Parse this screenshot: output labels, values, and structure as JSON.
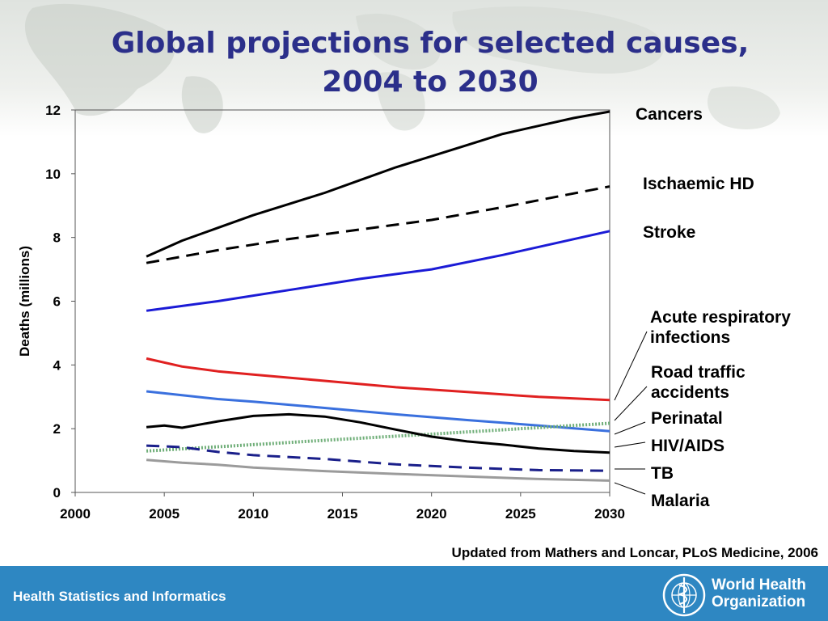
{
  "slide": {
    "title_line1": "Global projections for selected causes,",
    "title_line2": "2004 to 2030",
    "source": "Updated from Mathers and Loncar, PLoS Medicine, 2006",
    "footer_text": "Health Statistics and Informatics",
    "org_line1": "World Health",
    "org_line2": "Organization"
  },
  "chart_data": {
    "type": "line",
    "ylabel": "Deaths (millions)",
    "xlim": [
      2000,
      2030
    ],
    "ylim": [
      0,
      12
    ],
    "x_ticks": [
      2000,
      2005,
      2010,
      2015,
      2020,
      2025,
      2030
    ],
    "y_ticks": [
      0,
      2,
      4,
      6,
      8,
      10,
      12
    ],
    "grid": false,
    "legend": "labels at right end of lines",
    "series": [
      {
        "name": "Cancers",
        "color": "#000000",
        "dash": "solid",
        "x": [
          2004,
          2006,
          2008,
          2010,
          2012,
          2014,
          2016,
          2018,
          2020,
          2022,
          2024,
          2026,
          2028,
          2030
        ],
        "y": [
          7.4,
          7.9,
          8.3,
          8.7,
          9.05,
          9.4,
          9.8,
          10.2,
          10.55,
          10.9,
          11.25,
          11.5,
          11.75,
          11.95
        ]
      },
      {
        "name": "Ischaemic HD",
        "color": "#000000",
        "dash": "dashed",
        "x": [
          2004,
          2008,
          2012,
          2016,
          2020,
          2024,
          2030
        ],
        "y": [
          7.2,
          7.6,
          7.95,
          8.25,
          8.55,
          8.95,
          9.6
        ]
      },
      {
        "name": "Stroke",
        "color": "#1b1bd6",
        "dash": "solid",
        "x": [
          2004,
          2008,
          2012,
          2016,
          2020,
          2024,
          2030
        ],
        "y": [
          5.7,
          6.0,
          6.35,
          6.7,
          7.0,
          7.45,
          8.2
        ]
      },
      {
        "name": "Acute respiratory infections",
        "color": "#e02020",
        "dash": "solid",
        "x": [
          2004,
          2006,
          2008,
          2010,
          2014,
          2018,
          2022,
          2026,
          2030
        ],
        "y": [
          4.2,
          3.95,
          3.8,
          3.7,
          3.5,
          3.3,
          3.15,
          3.0,
          2.9
        ]
      },
      {
        "name": "Road traffic accidents",
        "color": "#3a70de",
        "dash": "solid",
        "x": [
          2004,
          2006,
          2008,
          2010,
          2014,
          2018,
          2022,
          2026,
          2030
        ],
        "y": [
          3.17,
          3.05,
          2.93,
          2.85,
          2.65,
          2.45,
          2.27,
          2.1,
          1.92
        ]
      },
      {
        "name": "Perinatal",
        "color": "#6fae78",
        "dash": "dotted",
        "x": [
          2004,
          2010,
          2015,
          2020,
          2025,
          2030
        ],
        "y": [
          1.3,
          1.5,
          1.67,
          1.83,
          2.0,
          2.17
        ]
      },
      {
        "name": "HIV/AIDS",
        "color": "#000000",
        "dash": "solid",
        "x": [
          2004,
          2005,
          2006,
          2008,
          2010,
          2012,
          2014,
          2016,
          2018,
          2020,
          2022,
          2024,
          2026,
          2028,
          2030
        ],
        "y": [
          2.05,
          2.1,
          2.03,
          2.23,
          2.4,
          2.45,
          2.38,
          2.2,
          1.97,
          1.75,
          1.6,
          1.5,
          1.38,
          1.3,
          1.25
        ]
      },
      {
        "name": "TB",
        "color": "#1a1f8a",
        "dash": "dashed",
        "x": [
          2004,
          2006,
          2008,
          2010,
          2014,
          2018,
          2022,
          2026,
          2030
        ],
        "y": [
          1.47,
          1.42,
          1.27,
          1.17,
          1.05,
          0.88,
          0.78,
          0.7,
          0.68
        ]
      },
      {
        "name": "Malaria",
        "color": "#9b9b9b",
        "dash": "solid",
        "x": [
          2004,
          2006,
          2008,
          2010,
          2014,
          2018,
          2022,
          2026,
          2030
        ],
        "y": [
          1.02,
          0.93,
          0.87,
          0.78,
          0.67,
          0.58,
          0.5,
          0.42,
          0.37
        ]
      }
    ]
  }
}
